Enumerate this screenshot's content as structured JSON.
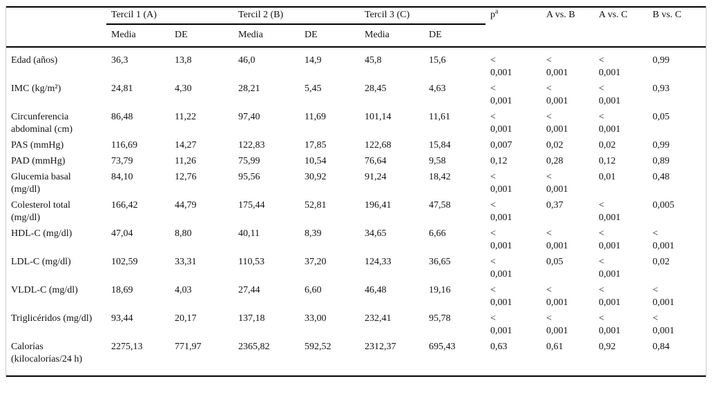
{
  "table": {
    "col_groups": [
      {
        "label": "Tercil 1 (A)"
      },
      {
        "label": "Tercil 2 (B)"
      },
      {
        "label": "Tercil 3 (C)"
      }
    ],
    "sub_headers": [
      "Media",
      "DE",
      "Media",
      "DE",
      "Media",
      "DE"
    ],
    "p_label": "p",
    "p_footnote_marker": "a",
    "comparison_headers": [
      "A vs. B",
      "A vs. C",
      "B vs. C"
    ],
    "rows": [
      {
        "label": "Edad (años)",
        "values": [
          "36,3",
          "13,8",
          "46,0",
          "14,9",
          "45,8",
          "15,6",
          "<\n0,001",
          "<\n0,001",
          "<\n0,001",
          "0,99"
        ]
      },
      {
        "label": "IMC (kg/m²)",
        "values": [
          "24,81",
          "4,30",
          "28,21",
          "5,45",
          "28,45",
          "4,63",
          "<\n0,001",
          "<\n0,001",
          "<\n0,001",
          "0,93"
        ]
      },
      {
        "label": "Circunferencia abdominal (cm)",
        "values": [
          "86,48",
          "11,22",
          "97,40",
          "11,69",
          "101,14",
          "11,61",
          "<\n0,001",
          "<\n0,001",
          "<\n0,001",
          "0,05"
        ]
      },
      {
        "label": "PAS (mmHg)",
        "values": [
          "116,69",
          "14,27",
          "122,83",
          "17,85",
          "122,68",
          "15,84",
          "0,007",
          "0,02",
          "0,02",
          "0,99"
        ]
      },
      {
        "label": "PAD (mmHg)",
        "values": [
          "73,79",
          "11,26",
          "75,99",
          "10,54",
          "76,64",
          "9,58",
          "0,12",
          "0,28",
          "0,12",
          "0,89"
        ]
      },
      {
        "label": "Glucemia basal (mg/dl)",
        "values": [
          "84,10",
          "12,76",
          "95,56",
          "30,92",
          "91,24",
          "18,42",
          "<\n0,001",
          "<\n0,001",
          "0,01",
          "0,48"
        ]
      },
      {
        "label": "Colesterol total (mg/dl)",
        "values": [
          "166,42",
          "44,79",
          "175,44",
          "52,81",
          "196,41",
          "47,58",
          "<\n0,001",
          "0,37",
          "<\n0,001",
          "0,005"
        ]
      },
      {
        "label": "HDL-C (mg/dl)",
        "values": [
          "47,04",
          "8,80",
          "40,11",
          "8,39",
          "34,65",
          "6,66",
          "<\n0,001",
          "<\n0,001",
          "<\n0,001",
          "<\n0,001"
        ]
      },
      {
        "label": "LDL-C (mg/dl)",
        "values": [
          "102,59",
          "33,31",
          "110,53",
          "37,20",
          "124,33",
          "36,65",
          "<\n0,001",
          "0,05",
          "<\n0,001",
          "0,02"
        ]
      },
      {
        "label": "VLDL-C (mg/dl)",
        "values": [
          "18,69",
          "4,03",
          "27,44",
          "6,60",
          "46,48",
          "19,16",
          "<\n0,001",
          "<\n0,001",
          "<\n0,001",
          "<\n0,001"
        ]
      },
      {
        "label": "Triglicéridos (mg/dl)",
        "values": [
          "93,44",
          "20,17",
          "137,18",
          "33,00",
          "232,41",
          "95,78",
          "<\n0,001",
          "<\n0,001",
          "<\n0,001",
          "<\n0,001"
        ]
      },
      {
        "label": "Calorías (kilocalorías/24 h)",
        "values": [
          "2275,13",
          "771,97",
          "2365,82",
          "592,52",
          "2312,37",
          "695,43",
          "0,63",
          "0,61",
          "0,92",
          "0,84"
        ]
      }
    ]
  }
}
